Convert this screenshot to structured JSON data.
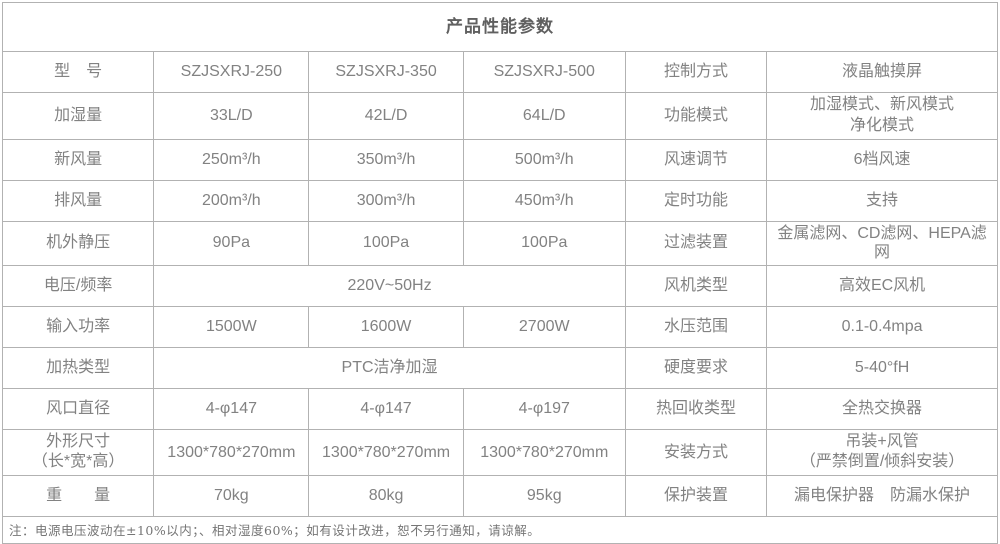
{
  "page": {
    "background": "#ffffff",
    "border_color": "#b2b2b2",
    "title_color": "#606060",
    "text_color": "#828282"
  },
  "table": {
    "title": "产品性能参数",
    "note": "注：电源电压波动在±10%以内；、相对湿度60%；如有设计改进，恕不另行通知，请谅解。",
    "rows": [
      {
        "cells": [
          {
            "role": "label",
            "text": "型　号"
          },
          {
            "role": "value",
            "text": "SZJSXRJ-250"
          },
          {
            "role": "value",
            "text": "SZJSXRJ-350"
          },
          {
            "role": "value",
            "text": "SZJSXRJ-500"
          },
          {
            "role": "label",
            "text": "控制方式"
          },
          {
            "role": "value",
            "text": "液晶触摸屏"
          }
        ]
      },
      {
        "cells": [
          {
            "role": "label",
            "text": "加湿量"
          },
          {
            "role": "value",
            "text": "33L/D"
          },
          {
            "role": "value",
            "text": "42L/D"
          },
          {
            "role": "value",
            "text": "64L/D"
          },
          {
            "role": "label",
            "text": "功能模式"
          },
          {
            "role": "value",
            "lines": [
              "加湿模式、新风模式",
              "净化模式"
            ]
          }
        ]
      },
      {
        "cells": [
          {
            "role": "label",
            "text": "新风量"
          },
          {
            "role": "value",
            "text": "250m³/h"
          },
          {
            "role": "value",
            "text": "350m³/h"
          },
          {
            "role": "value",
            "text": "500m³/h"
          },
          {
            "role": "label",
            "text": "风速调节"
          },
          {
            "role": "value",
            "text": "6档风速"
          }
        ]
      },
      {
        "cells": [
          {
            "role": "label",
            "text": "排风量"
          },
          {
            "role": "value",
            "text": "200m³/h"
          },
          {
            "role": "value",
            "text": "300m³/h"
          },
          {
            "role": "value",
            "text": "450m³/h"
          },
          {
            "role": "label",
            "text": "定时功能"
          },
          {
            "role": "value",
            "text": "支持"
          }
        ]
      },
      {
        "cells": [
          {
            "role": "label",
            "text": "机外静压"
          },
          {
            "role": "value",
            "text": "90Pa"
          },
          {
            "role": "value",
            "text": "100Pa"
          },
          {
            "role": "value",
            "text": "100Pa"
          },
          {
            "role": "label",
            "text": "过滤装置"
          },
          {
            "role": "value",
            "text": "金属滤网、CD滤网、HEPA滤网"
          }
        ]
      },
      {
        "cells": [
          {
            "role": "label",
            "text": "电压/频率"
          },
          {
            "role": "value",
            "text": "220V~50Hz",
            "span": 3
          },
          {
            "role": "label",
            "text": "风机类型"
          },
          {
            "role": "value",
            "text": "高效EC风机"
          }
        ]
      },
      {
        "cells": [
          {
            "role": "label",
            "text": "输入功率"
          },
          {
            "role": "value",
            "text": "1500W"
          },
          {
            "role": "value",
            "text": "1600W"
          },
          {
            "role": "value",
            "text": "2700W"
          },
          {
            "role": "label",
            "text": "水压范围"
          },
          {
            "role": "value",
            "text": "0.1-0.4mpa"
          }
        ]
      },
      {
        "cells": [
          {
            "role": "label",
            "text": "加热类型"
          },
          {
            "role": "value",
            "text": "PTC洁净加湿",
            "span": 3
          },
          {
            "role": "label",
            "text": "硬度要求"
          },
          {
            "role": "value",
            "text": "5-40°fH"
          }
        ]
      },
      {
        "cells": [
          {
            "role": "label",
            "text": "风口直径"
          },
          {
            "role": "value",
            "text": "4-φ147"
          },
          {
            "role": "value",
            "text": "4-φ147"
          },
          {
            "role": "value",
            "text": "4-φ197"
          },
          {
            "role": "label",
            "text": "热回收类型"
          },
          {
            "role": "value",
            "text": "全热交换器"
          }
        ]
      },
      {
        "cells": [
          {
            "role": "label",
            "lines": [
              "外形尺寸",
              "（长*宽*高）"
            ]
          },
          {
            "role": "value",
            "text": "1300*780*270mm"
          },
          {
            "role": "value",
            "text": "1300*780*270mm"
          },
          {
            "role": "value",
            "text": "1300*780*270mm"
          },
          {
            "role": "label",
            "text": "安装方式"
          },
          {
            "role": "value",
            "lines": [
              "吊装+风管",
              "（严禁倒置/倾斜安装）"
            ]
          }
        ]
      },
      {
        "cells": [
          {
            "role": "label",
            "text": "重　　量"
          },
          {
            "role": "value",
            "text": "70kg"
          },
          {
            "role": "value",
            "text": "80kg"
          },
          {
            "role": "value",
            "text": "95kg"
          },
          {
            "role": "label",
            "text": "保护装置"
          },
          {
            "role": "value",
            "text": "漏电保护器　防漏水保护"
          }
        ]
      }
    ]
  }
}
